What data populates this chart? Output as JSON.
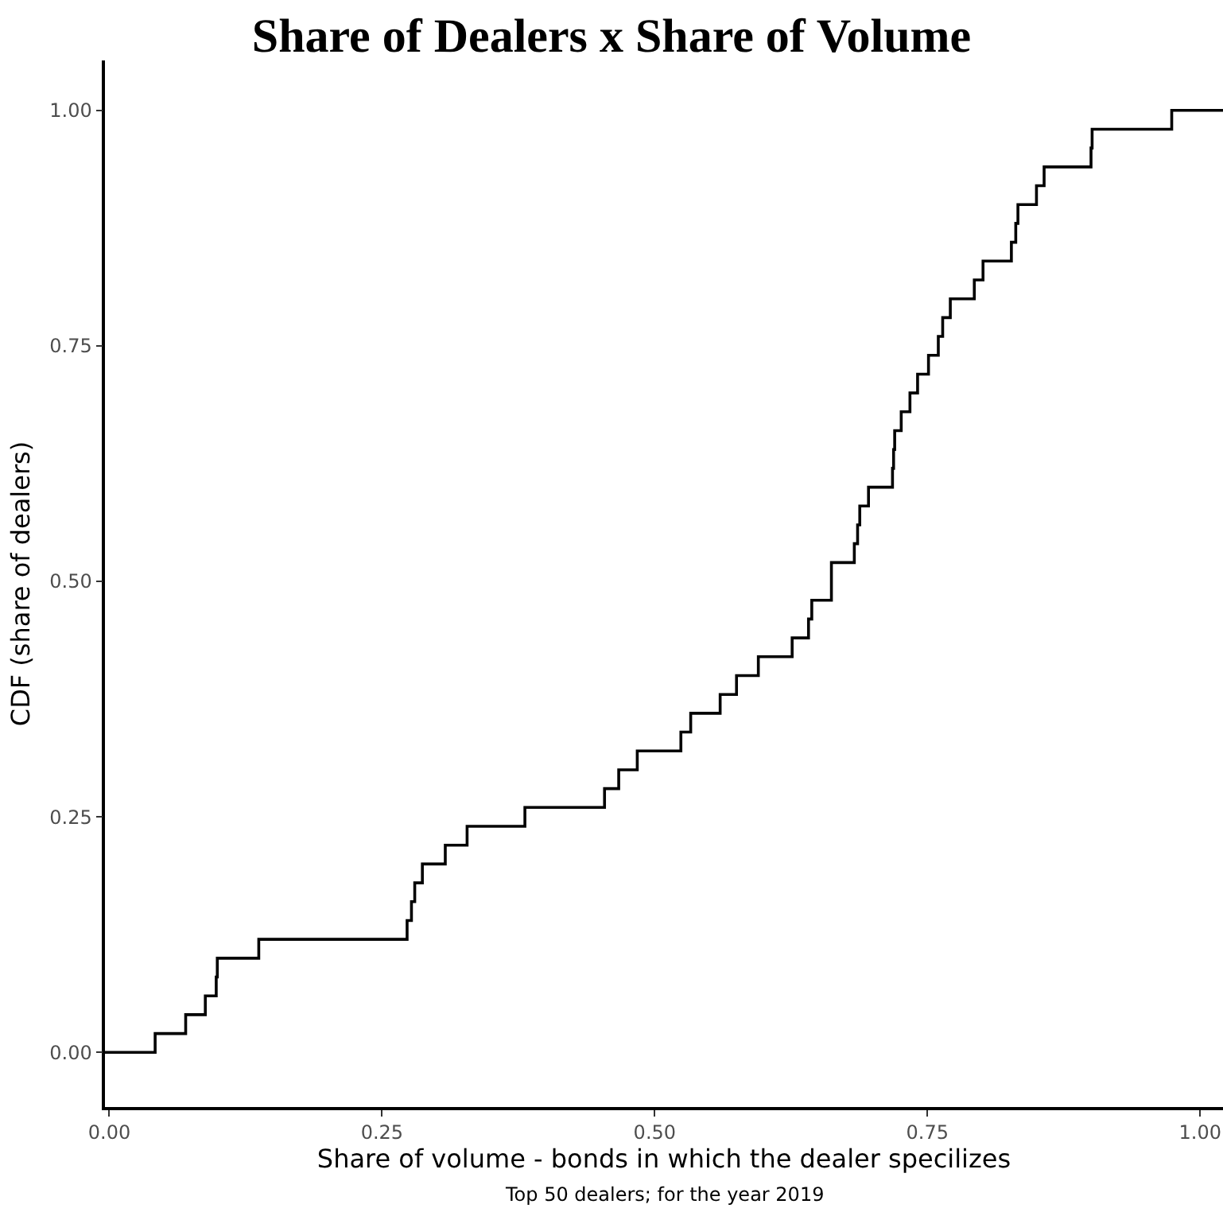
{
  "chart_data": {
    "type": "step",
    "title": "Share of Dealers x Share of Volume",
    "xlabel": "Share of volume - bonds in which the dealer specilizes",
    "ylabel": "CDF (share of dealers)",
    "annotations": [
      "Top 50 dealers; for the year 2019"
    ],
    "x": [
      -0.004,
      0.042,
      0.07,
      0.088,
      0.098,
      0.099,
      0.137,
      0.273,
      0.277,
      0.28,
      0.287,
      0.308,
      0.328,
      0.381,
      0.454,
      0.467,
      0.484,
      0.524,
      0.533,
      0.56,
      0.575,
      0.595,
      0.626,
      0.641,
      0.644,
      0.662,
      0.662,
      0.683,
      0.686,
      0.688,
      0.696,
      0.718,
      0.719,
      0.72,
      0.726,
      0.734,
      0.741,
      0.751,
      0.76,
      0.764,
      0.771,
      0.793,
      0.801,
      0.827,
      0.831,
      0.833,
      0.85,
      0.857,
      0.9,
      0.901,
      0.974,
      1.021
    ],
    "values": [
      0,
      0.02,
      0.04,
      0.06,
      0.08,
      0.1,
      0.12,
      0.14,
      0.16,
      0.18,
      0.2,
      0.22,
      0.24,
      0.26,
      0.28,
      0.3,
      0.32,
      0.34,
      0.36,
      0.38,
      0.4,
      0.42,
      0.44,
      0.46,
      0.48,
      0.5,
      0.52,
      0.54,
      0.56,
      0.58,
      0.6,
      0.62,
      0.64,
      0.66,
      0.68,
      0.7,
      0.72,
      0.74,
      0.76,
      0.78,
      0.8,
      0.82,
      0.84,
      0.86,
      0.88,
      0.9,
      0.92,
      0.94,
      0.96,
      0.98,
      1.0,
      1.0
    ],
    "color": "#000000",
    "xlim": [
      -0.004,
      1.021
    ],
    "ylim": [
      -0.058,
      1.053
    ],
    "xticks": [
      {
        "value": 0,
        "label": "0.00"
      },
      0.25,
      {
        "value": 0.5,
        "label": "0.50"
      },
      0.75,
      {
        "value": 1,
        "label": "1.00"
      }
    ],
    "yticks": [
      {
        "value": 0,
        "label": "0.00"
      },
      0.25,
      {
        "value": 0.5,
        "label": "0.50"
      },
      0.75,
      {
        "value": 1,
        "label": "1.00"
      }
    ]
  }
}
